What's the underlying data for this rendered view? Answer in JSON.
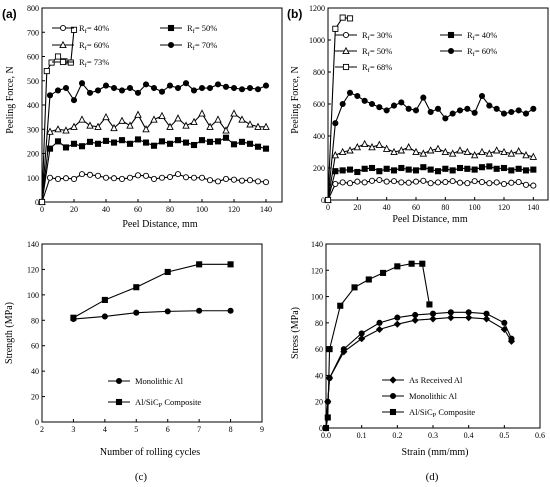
{
  "chart_data": [
    {
      "panel": "(a)",
      "type": "line",
      "xlabel": "Peel Distance, mm",
      "ylabel": "Peeling Force, N",
      "xlim": [
        0,
        150
      ],
      "ylim": [
        0,
        800
      ],
      "xticks": [
        0,
        20,
        40,
        60,
        80,
        100,
        120,
        140
      ],
      "yticks": [
        0,
        100,
        200,
        300,
        400,
        500,
        600,
        700,
        800
      ],
      "series": [
        {
          "name": "Rf= 40%",
          "marker": "open-circle",
          "x": [
            0,
            5,
            10,
            15,
            20,
            25,
            30,
            35,
            40,
            45,
            50,
            55,
            60,
            65,
            70,
            75,
            80,
            85,
            90,
            95,
            100,
            105,
            110,
            115,
            120,
            125,
            130,
            135,
            140
          ],
          "y": [
            0,
            100,
            95,
            98,
            95,
            115,
            112,
            108,
            100,
            98,
            95,
            100,
            110,
            108,
            95,
            100,
            103,
            115,
            102,
            100,
            100,
            90,
            85,
            95,
            92,
            88,
            90,
            85,
            82
          ]
        },
        {
          "name": "Rf= 50%",
          "marker": "filled-square",
          "x": [
            0,
            5,
            10,
            15,
            20,
            25,
            30,
            35,
            40,
            45,
            50,
            55,
            60,
            65,
            70,
            75,
            80,
            85,
            90,
            95,
            100,
            105,
            110,
            115,
            120,
            125,
            130,
            135,
            140
          ],
          "y": [
            0,
            220,
            250,
            225,
            240,
            230,
            248,
            240,
            252,
            245,
            255,
            240,
            258,
            245,
            232,
            250,
            240,
            255,
            245,
            235,
            255,
            248,
            250,
            265,
            238,
            248,
            240,
            228,
            220
          ]
        },
        {
          "name": "Rf= 60%",
          "marker": "open-triangle",
          "x": [
            0,
            5,
            10,
            15,
            20,
            25,
            30,
            35,
            40,
            45,
            50,
            55,
            60,
            65,
            70,
            75,
            80,
            85,
            90,
            95,
            100,
            105,
            110,
            115,
            120,
            125,
            130,
            135,
            140
          ],
          "y": [
            0,
            290,
            300,
            295,
            310,
            340,
            315,
            310,
            350,
            305,
            335,
            315,
            360,
            300,
            340,
            355,
            310,
            345,
            315,
            330,
            365,
            310,
            340,
            295,
            365,
            340,
            320,
            310,
            310
          ]
        },
        {
          "name": "Rf= 70%",
          "marker": "filled-circle",
          "x": [
            0,
            5,
            10,
            15,
            20,
            25,
            30,
            35,
            40,
            45,
            50,
            55,
            60,
            65,
            70,
            75,
            80,
            85,
            90,
            95,
            100,
            105,
            110,
            115,
            120,
            125,
            130,
            135,
            140
          ],
          "y": [
            0,
            440,
            460,
            470,
            420,
            490,
            450,
            460,
            480,
            470,
            460,
            470,
            450,
            485,
            470,
            455,
            480,
            470,
            490,
            460,
            470,
            470,
            485,
            475,
            470,
            465,
            470,
            465,
            480
          ]
        },
        {
          "name": "Rf= 73%",
          "marker": "open-square",
          "x": [
            0,
            3,
            6,
            10,
            14,
            18,
            20
          ],
          "y": [
            0,
            540,
            575,
            600,
            580,
            575,
            710
          ]
        }
      ]
    },
    {
      "panel": "(b)",
      "type": "line",
      "xlabel": "Peel Distance, mm",
      "ylabel": "Peeling Force, N",
      "xlim": [
        0,
        150
      ],
      "ylim": [
        0,
        1200
      ],
      "xticks": [
        0,
        20,
        40,
        60,
        80,
        100,
        120,
        140
      ],
      "yticks": [
        0,
        200,
        400,
        600,
        800,
        1000,
        1200
      ],
      "series": [
        {
          "name": "Rf= 30%",
          "marker": "open-circle",
          "x": [
            0,
            5,
            10,
            15,
            20,
            25,
            30,
            35,
            40,
            45,
            50,
            55,
            60,
            65,
            70,
            75,
            80,
            85,
            90,
            95,
            100,
            105,
            110,
            115,
            120,
            125,
            130,
            135,
            140
          ],
          "y": [
            0,
            100,
            110,
            105,
            115,
            110,
            120,
            125,
            115,
            118,
            110,
            108,
            115,
            120,
            105,
            110,
            112,
            118,
            108,
            105,
            118,
            112,
            105,
            110,
            100,
            108,
            112,
            95,
            90
          ]
        },
        {
          "name": "Rf= 40%",
          "marker": "filled-square",
          "x": [
            0,
            5,
            10,
            15,
            20,
            25,
            30,
            35,
            40,
            45,
            50,
            55,
            60,
            65,
            70,
            75,
            80,
            85,
            90,
            95,
            100,
            105,
            110,
            115,
            120,
            125,
            130,
            135,
            140
          ],
          "y": [
            0,
            180,
            185,
            190,
            175,
            195,
            200,
            180,
            195,
            185,
            200,
            190,
            185,
            205,
            190,
            180,
            195,
            185,
            200,
            195,
            190,
            205,
            210,
            195,
            200,
            185,
            195,
            185,
            190
          ]
        },
        {
          "name": "Rf= 50%",
          "marker": "open-triangle",
          "x": [
            0,
            5,
            10,
            15,
            20,
            25,
            30,
            35,
            40,
            45,
            50,
            55,
            60,
            65,
            70,
            75,
            80,
            85,
            90,
            95,
            100,
            105,
            110,
            115,
            120,
            125,
            130,
            135,
            140
          ],
          "y": [
            0,
            280,
            300,
            310,
            330,
            350,
            330,
            345,
            320,
            300,
            310,
            330,
            300,
            290,
            310,
            320,
            300,
            290,
            310,
            300,
            280,
            300,
            290,
            310,
            300,
            290,
            305,
            280,
            270
          ]
        },
        {
          "name": "Rf= 60%",
          "marker": "filled-circle",
          "x": [
            0,
            5,
            10,
            15,
            20,
            25,
            30,
            35,
            40,
            45,
            50,
            55,
            60,
            65,
            70,
            75,
            80,
            85,
            90,
            95,
            100,
            105,
            110,
            115,
            120,
            125,
            130,
            135,
            140
          ],
          "y": [
            0,
            480,
            600,
            670,
            650,
            620,
            600,
            580,
            560,
            590,
            610,
            570,
            560,
            640,
            550,
            570,
            510,
            540,
            560,
            570,
            545,
            650,
            590,
            570,
            540,
            550,
            560,
            540,
            570
          ]
        },
        {
          "name": "Rf= 68%",
          "marker": "open-square",
          "x": [
            0,
            5,
            10,
            15
          ],
          "y": [
            0,
            1070,
            1140,
            1135
          ]
        }
      ]
    },
    {
      "panel": "(c)",
      "type": "line",
      "xlabel": "Number of rolling cycles",
      "ylabel": "Strength (MPa)",
      "xlim": [
        2,
        9
      ],
      "ylim": [
        0,
        140
      ],
      "xticks": [
        2,
        3,
        4,
        5,
        6,
        7,
        8,
        9
      ],
      "yticks": [
        0,
        20,
        40,
        60,
        80,
        100,
        120,
        140
      ],
      "series": [
        {
          "name": "Monolithic Al",
          "marker": "filled-circle",
          "x": [
            3,
            4,
            5,
            6,
            7,
            8
          ],
          "y": [
            81,
            83,
            86,
            87,
            87.5,
            87.5
          ]
        },
        {
          "name": "Al/SiC",
          "sub": "P",
          "suffix": " Composite",
          "marker": "filled-square",
          "x": [
            3,
            4,
            5,
            6,
            7,
            8
          ],
          "y": [
            82,
            96,
            106,
            118,
            124,
            124
          ]
        }
      ],
      "caption": "(c)"
    },
    {
      "panel": "(d)",
      "type": "line",
      "xlabel": "Strain (mm/mm)",
      "ylabel": "Stress (MPa)",
      "xlim": [
        0,
        0.6
      ],
      "ylim": [
        0,
        140
      ],
      "xticks": [
        0,
        0.1,
        0.2,
        0.3,
        0.4,
        0.5,
        0.6
      ],
      "yticks": [
        0,
        20,
        40,
        60,
        80,
        100,
        120,
        140
      ],
      "series": [
        {
          "name": "As Received Al",
          "marker": "filled-diamond",
          "x": [
            0,
            0.005,
            0.01,
            0.05,
            0.1,
            0.15,
            0.2,
            0.25,
            0.3,
            0.35,
            0.4,
            0.45,
            0.5,
            0.52
          ],
          "y": [
            0,
            20,
            38,
            58,
            68,
            75,
            79,
            82,
            83,
            84,
            84,
            83,
            75,
            66
          ]
        },
        {
          "name": "Monolithic Al",
          "marker": "filled-circle",
          "x": [
            0,
            0.005,
            0.01,
            0.05,
            0.1,
            0.15,
            0.2,
            0.25,
            0.3,
            0.35,
            0.4,
            0.45,
            0.5,
            0.52
          ],
          "y": [
            0,
            20,
            38,
            60,
            72,
            80,
            84,
            86,
            87,
            88,
            88,
            87,
            80,
            68
          ]
        },
        {
          "name": "Al/SiC",
          "sub": "P",
          "suffix": " Composite",
          "marker": "filled-square",
          "x": [
            0,
            0.005,
            0.01,
            0.04,
            0.08,
            0.12,
            0.16,
            0.2,
            0.24,
            0.27,
            0.29
          ],
          "y": [
            0,
            8,
            60,
            93,
            107,
            113,
            118,
            123,
            125,
            125,
            94
          ]
        }
      ],
      "caption": "(d)"
    }
  ]
}
